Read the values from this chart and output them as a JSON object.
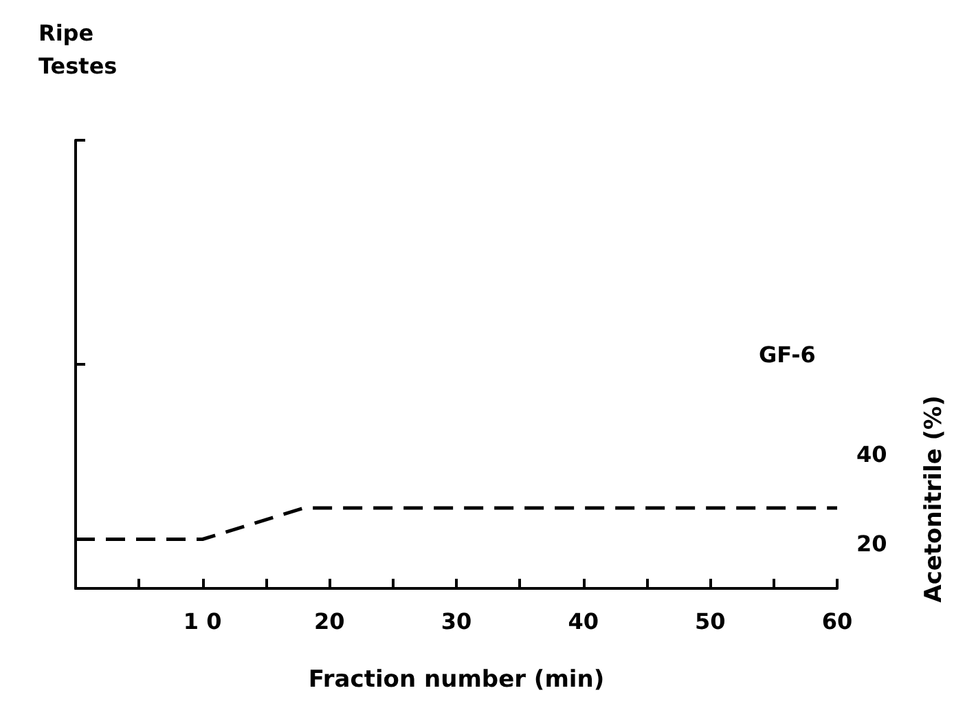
{
  "chart_data": {
    "type": "line",
    "xlabel": "Fraction number (min)",
    "y2label": "Acetonitrile (%)",
    "annotations": [
      "Ripe\nTestes",
      "GF-6"
    ],
    "xlim": [
      0,
      60
    ],
    "xticks": [
      {
        "value": 0,
        "label": null
      },
      {
        "value": 5,
        "label": null
      },
      {
        "value": 10,
        "label": "1 0"
      },
      {
        "value": 15,
        "label": null
      },
      20,
      {
        "value": 25,
        "label": null
      },
      30,
      {
        "value": 35,
        "label": null
      },
      40,
      {
        "value": 45,
        "label": null
      },
      50,
      {
        "value": 55,
        "label": null
      },
      60
    ],
    "y2lim": [
      10,
      50
    ],
    "y2ticks": [
      20,
      40
    ],
    "line_style": "dashed",
    "grid": false,
    "series": [
      {
        "color": "#000000",
        "axis": "y2",
        "x": [
          0,
          10,
          18,
          60
        ],
        "values": [
          21,
          21,
          28,
          28
        ]
      }
    ]
  }
}
